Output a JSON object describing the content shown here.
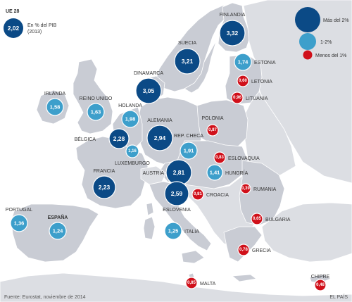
{
  "colors": {
    "sea": "#ffffff",
    "land_eu": "#c9ccd4",
    "land_other": "#dcdee3",
    "border": "#ffffff",
    "high": "#0b4a86",
    "mid": "#3d9fcb",
    "low": "#d0101a",
    "text": "#333333"
  },
  "header": {
    "title": "UE 28",
    "value": "2,02",
    "desc_line1": "En % del PIB",
    "desc_line2": "(2013)"
  },
  "legend": [
    {
      "label": "Más del 2%",
      "category": "high"
    },
    {
      "label": "1-2%",
      "category": "mid"
    },
    {
      "label": "Menos del 1%",
      "category": "low"
    }
  ],
  "countries": [
    {
      "name": "FINLANDIA",
      "value": "3,32",
      "category": "high"
    },
    {
      "name": "SUECIA",
      "value": "3,21",
      "category": "high"
    },
    {
      "name": "ESTONIA",
      "value": "1,74",
      "category": "mid"
    },
    {
      "name": "LETONIA",
      "value": "0,60",
      "category": "low"
    },
    {
      "name": "LITUANIA",
      "value": "0,96",
      "category": "low"
    },
    {
      "name": "DINAMARCA",
      "value": "3,05",
      "category": "high"
    },
    {
      "name": "IRLANDA",
      "value": "1,58",
      "category": "mid"
    },
    {
      "name": "REINO UNIDO",
      "value": "1,63",
      "category": "mid"
    },
    {
      "name": "HOLANDA",
      "value": "1,98",
      "category": "mid"
    },
    {
      "name": "ALEMANIA",
      "value": "2,94",
      "category": "high"
    },
    {
      "name": "POLONIA",
      "value": "0,87",
      "category": "low"
    },
    {
      "name": "BÉLGICA",
      "value": "2,28",
      "category": "high"
    },
    {
      "name": "LUXEMBURGO",
      "value": "1,16",
      "category": "mid"
    },
    {
      "name": "REP. CHECA",
      "value": "1,91",
      "category": "mid"
    },
    {
      "name": "ESLOVAQUIA",
      "value": "0,83",
      "category": "low"
    },
    {
      "name": "AUSTRIA",
      "value": "2,81",
      "category": "high"
    },
    {
      "name": "HUNGRÍA",
      "value": "1,41",
      "category": "mid"
    },
    {
      "name": "FRANCIA",
      "value": "2,23",
      "category": "high"
    },
    {
      "name": "ESLOVENIA",
      "value": "2,59",
      "category": "high"
    },
    {
      "name": "CROACIA",
      "value": "0,81",
      "category": "low"
    },
    {
      "name": "RUMANIA",
      "value": "0,39",
      "category": "low"
    },
    {
      "name": "PORTUGAL",
      "value": "1,36",
      "category": "mid"
    },
    {
      "name": "ESPAÑA",
      "value": "1,24",
      "category": "mid"
    },
    {
      "name": "ITALIA",
      "value": "1,25",
      "category": "mid"
    },
    {
      "name": "BULGARIA",
      "value": "0,65",
      "category": "low"
    },
    {
      "name": "GRECIA",
      "value": "0,78",
      "category": "low"
    },
    {
      "name": "MALTA",
      "value": "0,85",
      "category": "low"
    },
    {
      "name": "CHIPRE",
      "value": "0,48",
      "category": "low"
    }
  ],
  "footer": {
    "source": "Fuente: Eurostat, noviembre de 2014",
    "credit": "EL PAÍS"
  }
}
